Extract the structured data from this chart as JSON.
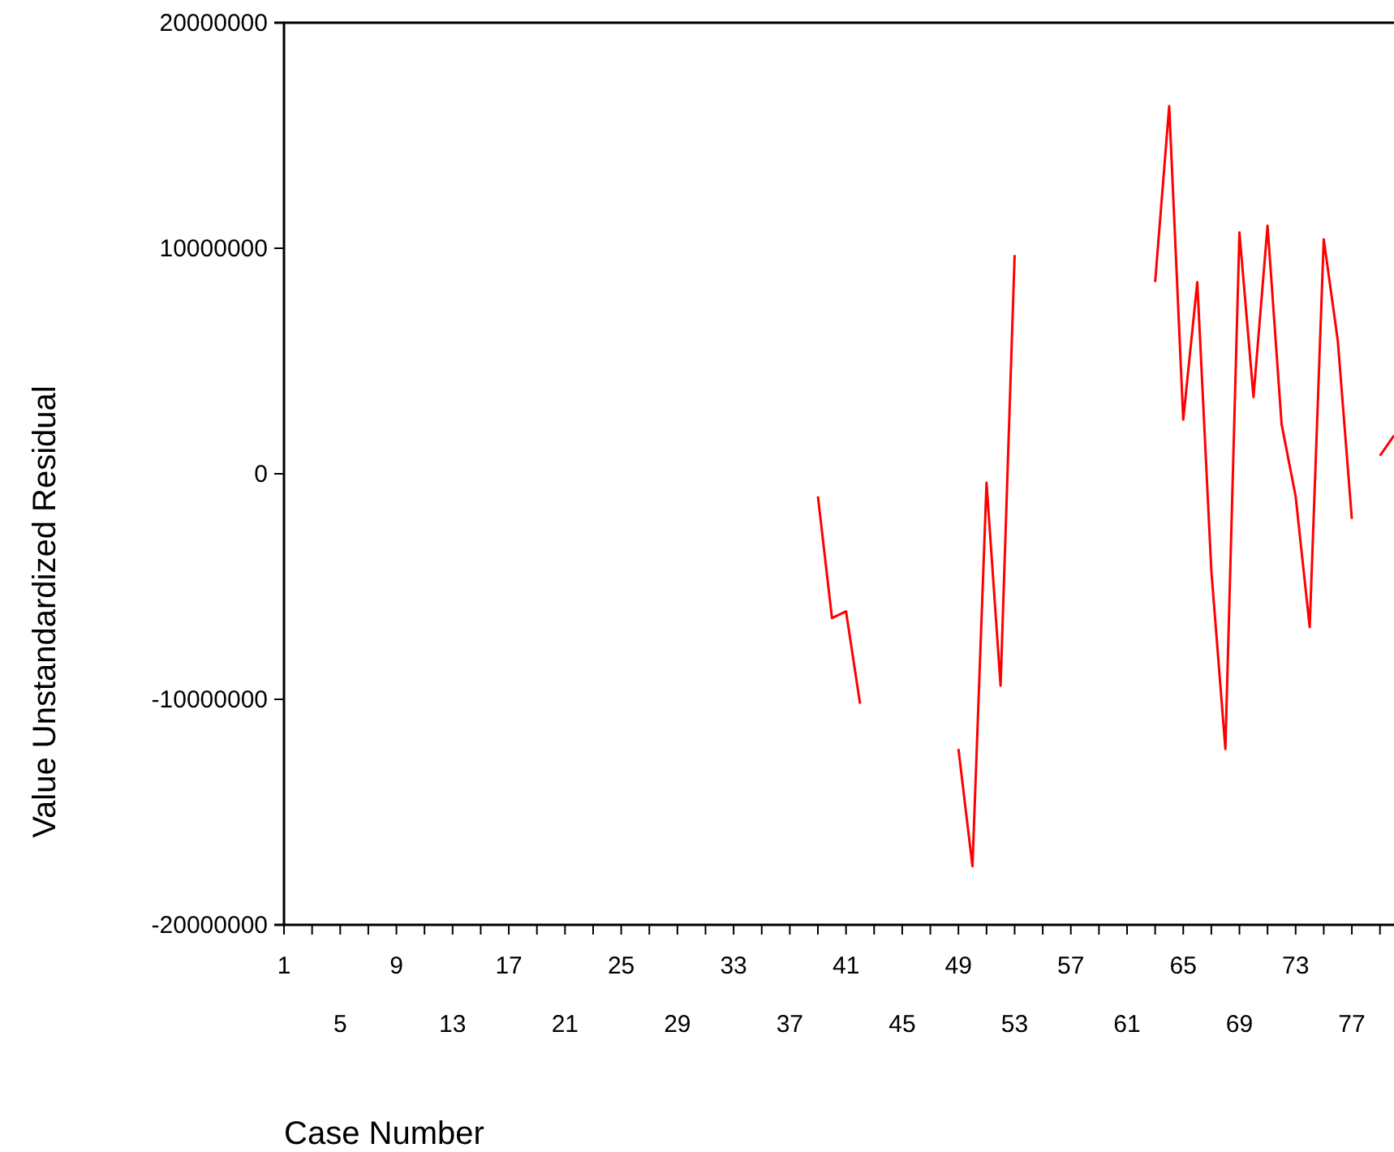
{
  "chart_data": {
    "type": "line",
    "xlabel": "Case Number",
    "ylabel": "Value Unstandardized Residual",
    "categories": [
      "1",
      null,
      null,
      null,
      "5",
      null,
      null,
      null,
      "9",
      null,
      null,
      null,
      "13",
      null,
      null,
      null,
      "17",
      null,
      null,
      null,
      "21",
      null,
      null,
      null,
      "25",
      null,
      null,
      null,
      "29",
      null,
      null,
      null,
      "33",
      null,
      null,
      null,
      "37",
      null,
      null,
      null,
      "41",
      null,
      null,
      null,
      "45",
      null,
      null,
      null,
      "49",
      null,
      null,
      null,
      "53",
      null,
      null,
      null,
      "57",
      null,
      null,
      null,
      "61",
      null,
      null,
      null,
      "65",
      null,
      null,
      null,
      "69",
      null,
      null,
      null,
      "73",
      null,
      null,
      null,
      "77",
      null,
      null,
      null
    ],
    "series": [
      {
        "color": "#ff0000",
        "values": [
          null,
          null,
          null,
          null,
          null,
          null,
          null,
          null,
          null,
          null,
          null,
          null,
          null,
          null,
          null,
          null,
          null,
          null,
          null,
          null,
          null,
          null,
          null,
          null,
          null,
          null,
          null,
          null,
          null,
          null,
          null,
          null,
          null,
          null,
          null,
          null,
          null,
          null,
          -1000000,
          -6400000,
          -6100000,
          -10200000,
          null,
          null,
          null,
          null,
          null,
          null,
          -12200000,
          -17400000,
          -400000,
          -9400000,
          9700000,
          null,
          null,
          null,
          null,
          null,
          null,
          null,
          null,
          null,
          8500000,
          16300000,
          2400000,
          8500000,
          -4300000,
          -12200000,
          10700000,
          3400000,
          11000000,
          2200000,
          -1000000,
          -6800000,
          10400000,
          5900000,
          -2000000,
          null,
          800000,
          1700000
        ]
      }
    ],
    "ylim": [
      -20000000,
      20000000
    ],
    "yticks": [
      20000000,
      10000000,
      0,
      -10000000,
      -20000000
    ],
    "grid": false,
    "marker": "none",
    "line_style": "solid"
  }
}
